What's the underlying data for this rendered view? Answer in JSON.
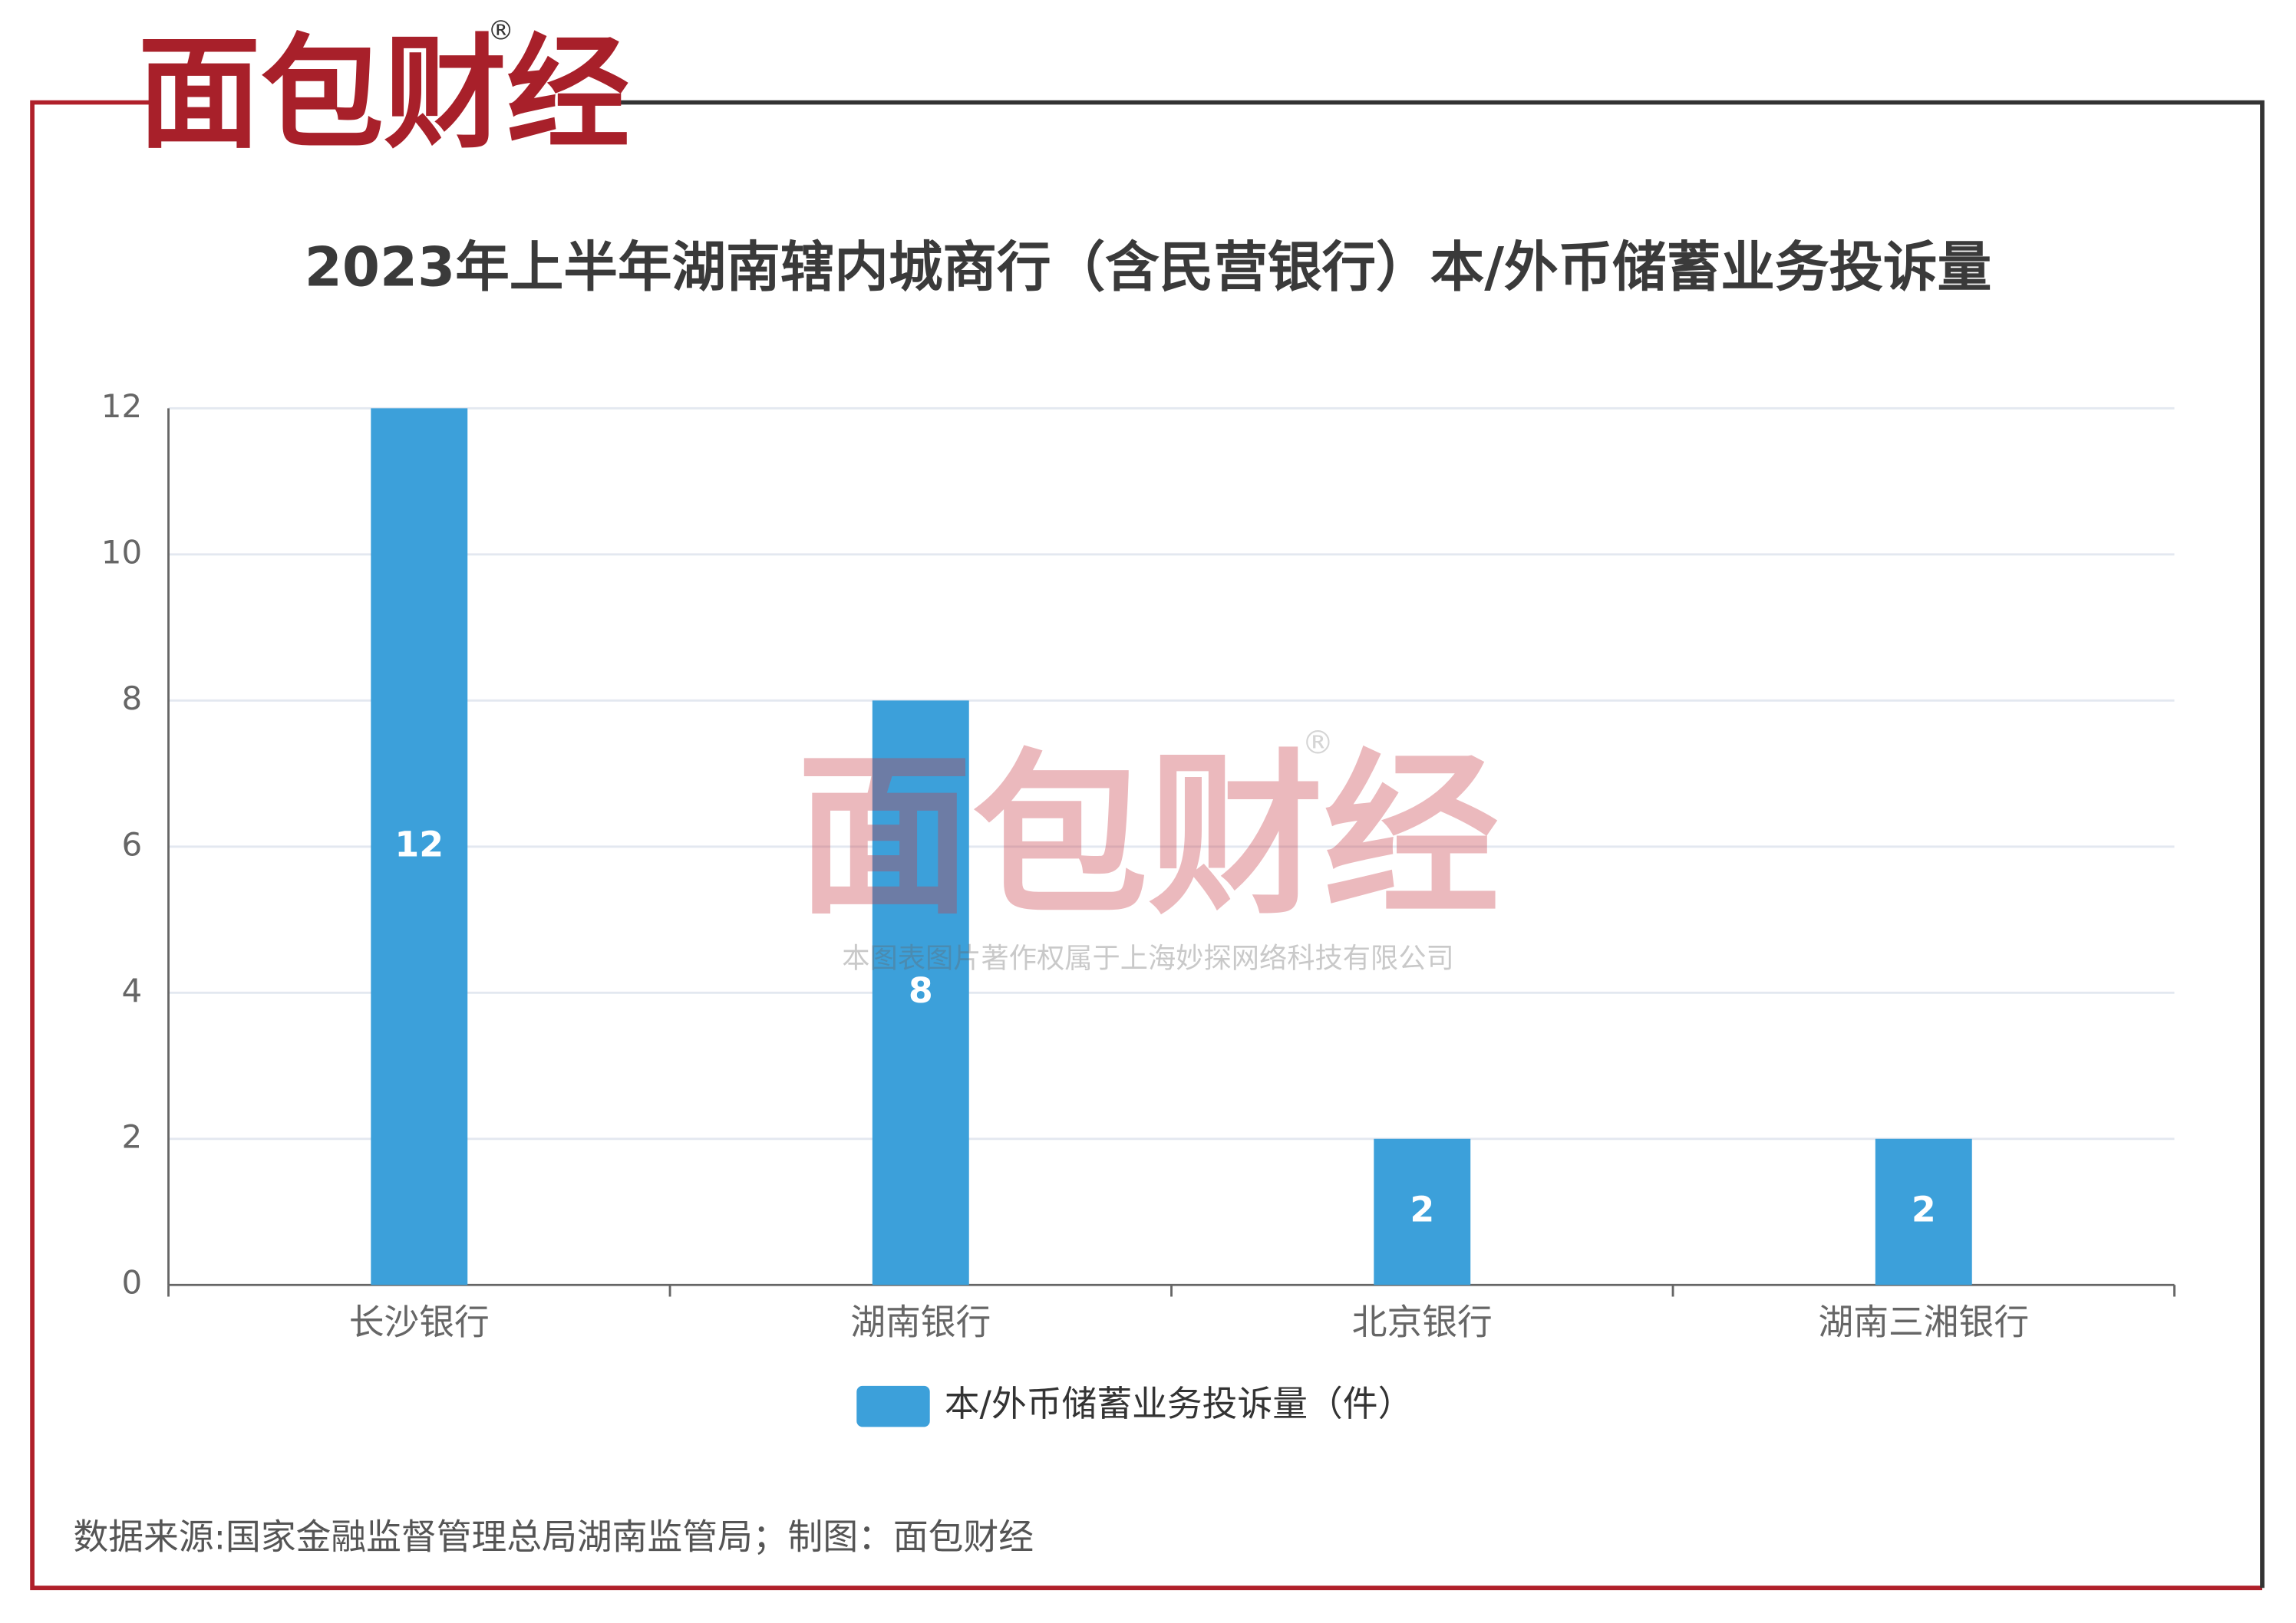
{
  "logo": "面包财经",
  "registered": "®",
  "watermark": {
    "logo": "面包财经",
    "registered": "®",
    "text": "本图表图片著作权属于上海妙探网络科技有限公司"
  },
  "source": "数据来源:国家金融监督管理总局湖南监管局；制图：面包财经",
  "chart_data": {
    "type": "bar",
    "title": "2023年上半年湖南辖内城商行（含民营银行）本/外币储蓄业务投诉量",
    "categories": [
      "长沙银行",
      "湖南银行",
      "北京银行",
      "湖南三湘银行"
    ],
    "series": [
      {
        "name": "本/外币储蓄业务投诉量（件）",
        "color": "#3ca0da",
        "values": [
          12,
          8,
          2,
          2
        ]
      }
    ],
    "ylim": [
      0,
      12
    ],
    "yticks": [
      0,
      2,
      4,
      6,
      8,
      10,
      12
    ],
    "grid": true,
    "legend": "bottom"
  }
}
